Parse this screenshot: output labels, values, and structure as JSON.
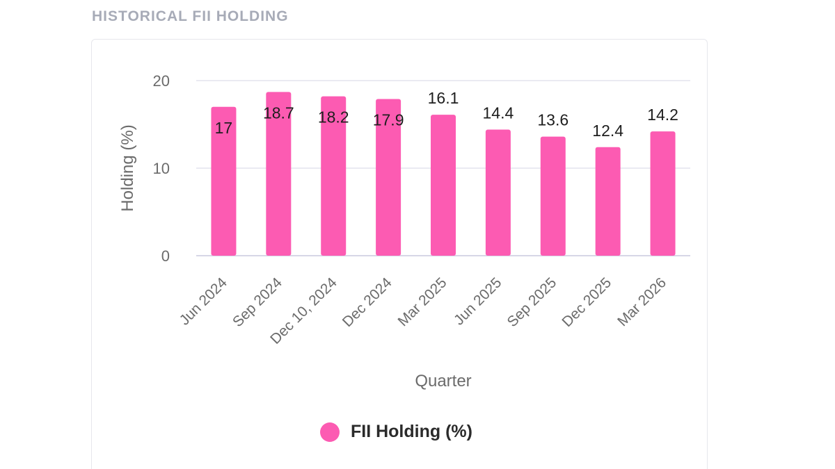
{
  "section_title": "HISTORICAL FII HOLDING",
  "colors": {
    "bar": "#fc5bb2",
    "grid": "#e4e4ee",
    "axis_text": "#6b6b6b",
    "label_text": "#1e1e1e"
  },
  "chart_data": {
    "type": "bar",
    "categories": [
      "Jun 2024",
      "Sep 2024",
      "Dec 10, 2024",
      "Dec 2024",
      "Mar 2025",
      "Jun 2025",
      "Sep 2025",
      "Dec 2025",
      "Mar 2026"
    ],
    "series": [
      {
        "name": "FII Holding (%)",
        "values": [
          17,
          18.7,
          18.2,
          17.9,
          16.1,
          14.4,
          13.6,
          12.4,
          14.2
        ],
        "labels": [
          "17",
          "18.7",
          "18.2",
          "17.9",
          "16.1",
          "14.4",
          "13.6",
          "12.4",
          "14.2"
        ]
      }
    ],
    "xlabel": "Quarter",
    "ylabel": "Holding (%)",
    "ylim": [
      0,
      20
    ],
    "yticks": [
      0,
      10,
      20
    ],
    "ytick_labels": [
      "0",
      "10",
      "20"
    ],
    "grid": true,
    "legend": "bottom-center"
  }
}
